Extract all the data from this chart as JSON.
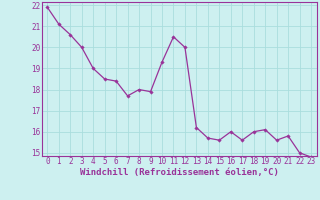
{
  "x": [
    0,
    1,
    2,
    3,
    4,
    5,
    6,
    7,
    8,
    9,
    10,
    11,
    12,
    13,
    14,
    15,
    16,
    17,
    18,
    19,
    20,
    21,
    22,
    23
  ],
  "y": [
    21.9,
    21.1,
    20.6,
    20.0,
    19.0,
    18.5,
    18.4,
    17.7,
    18.0,
    17.9,
    19.3,
    20.5,
    20.0,
    16.2,
    15.7,
    15.6,
    16.0,
    15.6,
    16.0,
    16.1,
    15.6,
    15.8,
    15.0,
    14.8
  ],
  "line_color": "#993399",
  "marker": "D",
  "marker_size": 1.8,
  "bg_color": "#cdf0f0",
  "grid_color": "#aadddd",
  "xlabel": "Windchill (Refroidissement éolien,°C)",
  "ylim": [
    15,
    22
  ],
  "xlim": [
    0,
    23
  ],
  "yticks": [
    15,
    16,
    17,
    18,
    19,
    20,
    21,
    22
  ],
  "xticks": [
    0,
    1,
    2,
    3,
    4,
    5,
    6,
    7,
    8,
    9,
    10,
    11,
    12,
    13,
    14,
    15,
    16,
    17,
    18,
    19,
    20,
    21,
    22,
    23
  ],
  "tick_fontsize": 5.5,
  "xlabel_fontsize": 6.5,
  "line_width": 0.9
}
